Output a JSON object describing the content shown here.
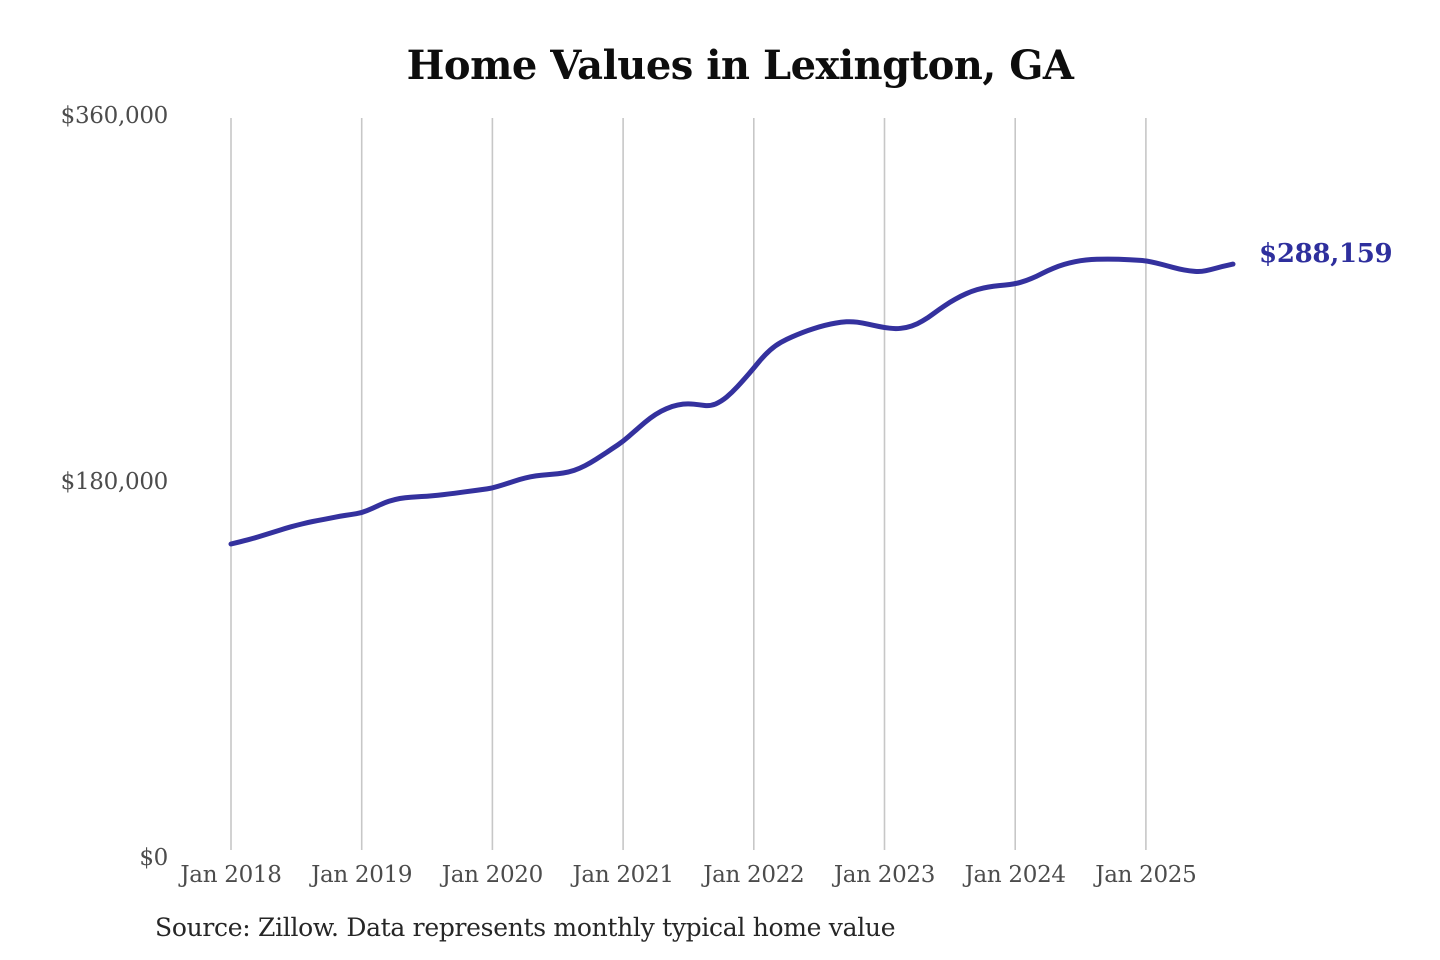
{
  "chart": {
    "colors": {
      "line": "#34319e",
      "end_label": "#2e2f9d",
      "gridline": "#c7c7c7",
      "axis_text": "#4c4c4c",
      "title_text": "#0d0d0d",
      "source_text": "#262626"
    }
  },
  "chart_data": {
    "type": "line",
    "title": "Home Values in Lexington, GA",
    "source": "Source: Zillow. Data represents monthly typical home value",
    "end_label": "$288,159",
    "end_value": 288159,
    "legend": "none",
    "grid": "vertical-only",
    "ylim": [
      0,
      360000
    ],
    "y_ticks": [
      0,
      180000,
      360000
    ],
    "y_tick_labels": [
      "$0",
      "$180,000",
      "$360,000"
    ],
    "x_tick_labels": [
      "Jan 2018",
      "Jan 2019",
      "Jan 2020",
      "Jan 2021",
      "Jan 2022",
      "Jan 2023",
      "Jan 2024",
      "Jan 2025"
    ],
    "x_monthly_start": "2018-01",
    "x_monthly_end": "2025-09",
    "series": [
      {
        "name": "Monthly typical home value",
        "values": [
          150500,
          151800,
          153200,
          154800,
          156500,
          158200,
          159700,
          161000,
          162100,
          163100,
          164100,
          165000,
          165800,
          168000,
          170600,
          172400,
          173300,
          173700,
          174000,
          174500,
          175100,
          175800,
          176500,
          177200,
          178000,
          179600,
          181400,
          183000,
          184100,
          184600,
          185000,
          185800,
          187600,
          190400,
          193800,
          197400,
          201000,
          205600,
          210400,
          214400,
          217200,
          219000,
          219600,
          218900,
          218300,
          220500,
          225000,
          230800,
          237000,
          243500,
          248200,
          251200,
          253500,
          255600,
          257300,
          258700,
          259600,
          259900,
          259200,
          258000,
          256900,
          256300,
          256800,
          258600,
          261800,
          265800,
          269400,
          272400,
          274800,
          276400,
          277300,
          277800,
          278400,
          280000,
          282200,
          285000,
          287200,
          288800,
          289900,
          290400,
          290600,
          290600,
          290400,
          290100,
          289800,
          288700,
          287200,
          285800,
          284800,
          284300,
          285500,
          287000,
          288159
        ]
      }
    ]
  }
}
